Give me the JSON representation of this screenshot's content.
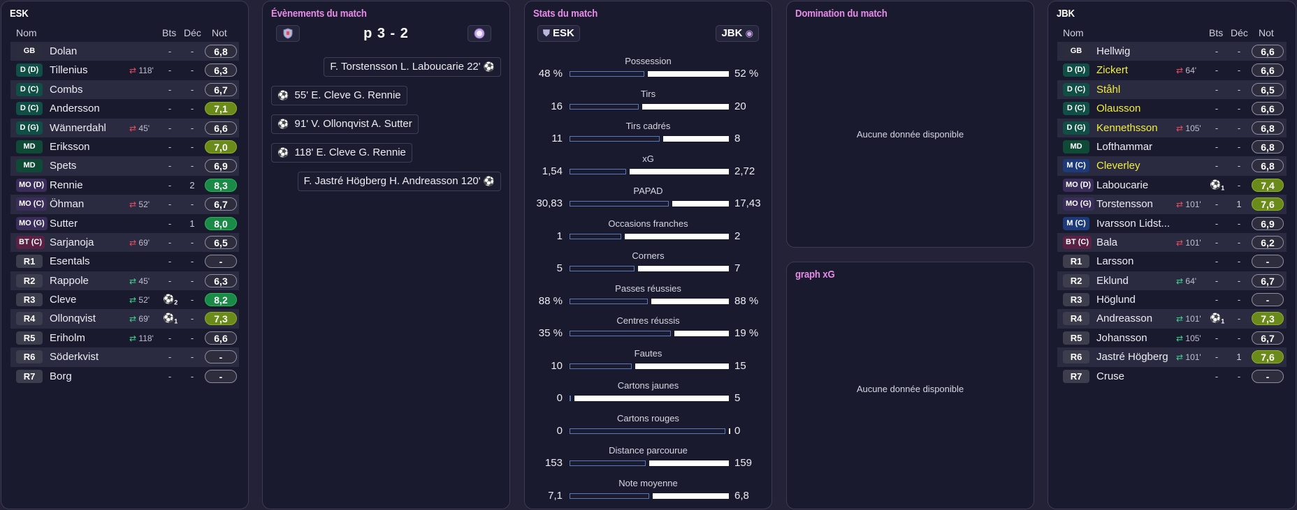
{
  "home_lineup": {
    "title": "ESK",
    "headers": {
      "name": "Nom",
      "goals": "Bts",
      "dec": "Déc",
      "rating": "Not"
    },
    "players": [
      {
        "pos": "GB",
        "pos_class": "pos-gk",
        "name": "Dolan",
        "sub": "",
        "sub_dir": "",
        "goal_icon": "",
        "goals": "-",
        "dec": "-",
        "rating": "6,8",
        "rating_class": ""
      },
      {
        "pos": "D (D)",
        "pos_class": "pos-def",
        "name": "Tillenius",
        "sub": "118'",
        "sub_dir": "out",
        "goal_icon": "",
        "goals": "-",
        "dec": "-",
        "rating": "6,3",
        "rating_class": ""
      },
      {
        "pos": "D (C)",
        "pos_class": "pos-def",
        "name": "Combs",
        "sub": "",
        "sub_dir": "",
        "goal_icon": "",
        "goals": "-",
        "dec": "-",
        "rating": "6,7",
        "rating_class": ""
      },
      {
        "pos": "D (C)",
        "pos_class": "pos-def",
        "name": "Andersson",
        "sub": "",
        "sub_dir": "",
        "goal_icon": "",
        "goals": "-",
        "dec": "-",
        "rating": "7,1",
        "rating_class": "r-yellow"
      },
      {
        "pos": "D (G)",
        "pos_class": "pos-def",
        "name": "Wännerdahl",
        "sub": "45'",
        "sub_dir": "out",
        "goal_icon": "",
        "goals": "-",
        "dec": "-",
        "rating": "6,6",
        "rating_class": ""
      },
      {
        "pos": "MD",
        "pos_class": "pos-mid",
        "name": "Eriksson",
        "sub": "",
        "sub_dir": "",
        "goal_icon": "",
        "goals": "-",
        "dec": "-",
        "rating": "7,0",
        "rating_class": "r-yellow"
      },
      {
        "pos": "MD",
        "pos_class": "pos-mid",
        "name": "Spets",
        "sub": "",
        "sub_dir": "",
        "goal_icon": "",
        "goals": "-",
        "dec": "-",
        "rating": "6,9",
        "rating_class": ""
      },
      {
        "pos": "MO (D)",
        "pos_class": "pos-am",
        "name": "Rennie",
        "sub": "",
        "sub_dir": "",
        "goal_icon": "",
        "goals": "-",
        "dec": "2",
        "rating": "8,3",
        "rating_class": "r-green"
      },
      {
        "pos": "MO (C)",
        "pos_class": "pos-am",
        "name": "Öhman",
        "sub": "52'",
        "sub_dir": "out",
        "goal_icon": "",
        "goals": "-",
        "dec": "-",
        "rating": "6,7",
        "rating_class": ""
      },
      {
        "pos": "MO (G)",
        "pos_class": "pos-am",
        "name": "Sutter",
        "sub": "",
        "sub_dir": "",
        "goal_icon": "",
        "goals": "-",
        "dec": "1",
        "rating": "8,0",
        "rating_class": "r-green"
      },
      {
        "pos": "BT (C)",
        "pos_class": "pos-fw",
        "name": "Sarjanoja",
        "sub": "69'",
        "sub_dir": "out",
        "goal_icon": "",
        "goals": "-",
        "dec": "-",
        "rating": "6,5",
        "rating_class": ""
      },
      {
        "pos": "R1",
        "pos_class": "pos-res",
        "name": "Esentals",
        "sub": "",
        "sub_dir": "",
        "goal_icon": "",
        "goals": "-",
        "dec": "-",
        "rating": "-",
        "rating_class": ""
      },
      {
        "pos": "R2",
        "pos_class": "pos-res",
        "name": "Rappole",
        "sub": "45'",
        "sub_dir": "in",
        "goal_icon": "",
        "goals": "-",
        "dec": "-",
        "rating": "6,3",
        "rating_class": ""
      },
      {
        "pos": "R3",
        "pos_class": "pos-res",
        "name": "Cleve",
        "sub": "52'",
        "sub_dir": "in",
        "goal_icon": "2",
        "goals": "",
        "dec": "-",
        "rating": "8,2",
        "rating_class": "r-green"
      },
      {
        "pos": "R4",
        "pos_class": "pos-res",
        "name": "Ollonqvist",
        "sub": "69'",
        "sub_dir": "in",
        "goal_icon": "1",
        "goals": "",
        "dec": "-",
        "rating": "7,3",
        "rating_class": "r-yellow"
      },
      {
        "pos": "R5",
        "pos_class": "pos-res",
        "name": "Eriholm",
        "sub": "118'",
        "sub_dir": "in",
        "goal_icon": "",
        "goals": "-",
        "dec": "-",
        "rating": "6,6",
        "rating_class": ""
      },
      {
        "pos": "R6",
        "pos_class": "pos-res",
        "name": "Söderkvist",
        "sub": "",
        "sub_dir": "",
        "goal_icon": "",
        "goals": "-",
        "dec": "-",
        "rating": "-",
        "rating_class": ""
      },
      {
        "pos": "R7",
        "pos_class": "pos-res",
        "name": "Borg",
        "sub": "",
        "sub_dir": "",
        "goal_icon": "",
        "goals": "-",
        "dec": "-",
        "rating": "-",
        "rating_class": ""
      }
    ]
  },
  "away_lineup": {
    "title": "JBK",
    "headers": {
      "name": "Nom",
      "goals": "Bts",
      "dec": "Déc",
      "rating": "Not"
    },
    "players": [
      {
        "pos": "GB",
        "pos_class": "pos-gk",
        "name": "Hellwig",
        "highlight": false,
        "sub": "",
        "sub_dir": "",
        "goal_icon": "",
        "goals": "-",
        "dec": "-",
        "rating": "6,6",
        "rating_class": ""
      },
      {
        "pos": "D (D)",
        "pos_class": "pos-def",
        "name": "Zickert",
        "highlight": true,
        "sub": "64'",
        "sub_dir": "out",
        "goal_icon": "",
        "goals": "-",
        "dec": "-",
        "rating": "6,6",
        "rating_class": ""
      },
      {
        "pos": "D (C)",
        "pos_class": "pos-def",
        "name": "Ståhl",
        "highlight": true,
        "sub": "",
        "sub_dir": "",
        "goal_icon": "",
        "goals": "-",
        "dec": "-",
        "rating": "6,5",
        "rating_class": ""
      },
      {
        "pos": "D (C)",
        "pos_class": "pos-def",
        "name": "Olausson",
        "highlight": true,
        "sub": "",
        "sub_dir": "",
        "goal_icon": "",
        "goals": "-",
        "dec": "-",
        "rating": "6,6",
        "rating_class": ""
      },
      {
        "pos": "D (G)",
        "pos_class": "pos-def",
        "name": "Kennethsson",
        "highlight": true,
        "sub": "105'",
        "sub_dir": "out",
        "goal_icon": "",
        "goals": "-",
        "dec": "-",
        "rating": "6,8",
        "rating_class": ""
      },
      {
        "pos": "MD",
        "pos_class": "pos-mid",
        "name": "Lofthammar",
        "highlight": false,
        "sub": "",
        "sub_dir": "",
        "goal_icon": "",
        "goals": "-",
        "dec": "-",
        "rating": "6,8",
        "rating_class": ""
      },
      {
        "pos": "M (C)",
        "pos_class": "pos-mc",
        "name": "Cleverley",
        "highlight": true,
        "sub": "",
        "sub_dir": "",
        "goal_icon": "",
        "goals": "-",
        "dec": "-",
        "rating": "6,8",
        "rating_class": ""
      },
      {
        "pos": "MO (D)",
        "pos_class": "pos-am",
        "name": "Laboucarie",
        "highlight": false,
        "sub": "",
        "sub_dir": "",
        "goal_icon": "1",
        "goals": "",
        "dec": "-",
        "rating": "7,4",
        "rating_class": "r-yellow"
      },
      {
        "pos": "MO (G)",
        "pos_class": "pos-am",
        "name": "Torstensson",
        "highlight": false,
        "sub": "101'",
        "sub_dir": "out",
        "goal_icon": "",
        "goals": "-",
        "dec": "1",
        "rating": "7,6",
        "rating_class": "r-yellow"
      },
      {
        "pos": "M (C)",
        "pos_class": "pos-mc",
        "name": "Ivarsson Lidst...",
        "highlight": false,
        "sub": "",
        "sub_dir": "",
        "goal_icon": "",
        "goals": "-",
        "dec": "-",
        "rating": "6,9",
        "rating_class": ""
      },
      {
        "pos": "BT (C)",
        "pos_class": "pos-fw",
        "name": "Bala",
        "highlight": false,
        "sub": "101'",
        "sub_dir": "out",
        "goal_icon": "",
        "goals": "-",
        "dec": "-",
        "rating": "6,2",
        "rating_class": ""
      },
      {
        "pos": "R1",
        "pos_class": "pos-res",
        "name": "Larsson",
        "highlight": false,
        "sub": "",
        "sub_dir": "",
        "goal_icon": "",
        "goals": "-",
        "dec": "-",
        "rating": "-",
        "rating_class": ""
      },
      {
        "pos": "R2",
        "pos_class": "pos-res",
        "name": "Eklund",
        "highlight": false,
        "sub": "64'",
        "sub_dir": "in",
        "goal_icon": "",
        "goals": "-",
        "dec": "-",
        "rating": "6,7",
        "rating_class": ""
      },
      {
        "pos": "R3",
        "pos_class": "pos-res",
        "name": "Höglund",
        "highlight": false,
        "sub": "",
        "sub_dir": "",
        "goal_icon": "",
        "goals": "-",
        "dec": "-",
        "rating": "-",
        "rating_class": ""
      },
      {
        "pos": "R4",
        "pos_class": "pos-res",
        "name": "Andreasson",
        "highlight": false,
        "sub": "101'",
        "sub_dir": "in",
        "goal_icon": "1",
        "goals": "",
        "dec": "-",
        "rating": "7,3",
        "rating_class": "r-yellow"
      },
      {
        "pos": "R5",
        "pos_class": "pos-res",
        "name": "Johansson",
        "highlight": false,
        "sub": "105'",
        "sub_dir": "in",
        "goal_icon": "",
        "goals": "-",
        "dec": "-",
        "rating": "6,7",
        "rating_class": ""
      },
      {
        "pos": "R6",
        "pos_class": "pos-res",
        "name": "Jastré Högberg",
        "highlight": false,
        "sub": "101'",
        "sub_dir": "in",
        "goal_icon": "",
        "goals": "-",
        "dec": "1",
        "rating": "7,6",
        "rating_class": "r-yellow"
      },
      {
        "pos": "R7",
        "pos_class": "pos-res",
        "name": "Cruse",
        "highlight": false,
        "sub": "",
        "sub_dir": "",
        "goal_icon": "",
        "goals": "-",
        "dec": "-",
        "rating": "-",
        "rating_class": ""
      }
    ]
  },
  "events": {
    "title": "Évènements du match",
    "score": "p 3 - 2",
    "items": [
      {
        "side": "away",
        "text": "F. Torstensson  L. Laboucarie  22'"
      },
      {
        "side": "home",
        "text": "55'  E. Cleve  G. Rennie"
      },
      {
        "side": "home",
        "text": "91'  V. Ollonqvist  A. Sutter"
      },
      {
        "side": "home",
        "text": "118'  E. Cleve  G. Rennie"
      },
      {
        "side": "away",
        "text": "F. Jastré Högberg  H. Andreasson  120'"
      }
    ]
  },
  "stats": {
    "title": "Stats du match",
    "home_team": "ESK",
    "away_team": "JBK",
    "rows": [
      {
        "label": "Possession",
        "home": "48 %",
        "away": "52 %",
        "home_share": 0.48
      },
      {
        "label": "Tirs",
        "home": "16",
        "away": "20",
        "home_share": 0.444
      },
      {
        "label": "Tirs cadrés",
        "home": "11",
        "away": "8",
        "home_share": 0.579
      },
      {
        "label": "xG",
        "home": "1,54",
        "away": "2,72",
        "home_share": 0.362
      },
      {
        "label": "PAPAD",
        "home": "30,83",
        "away": "17,43",
        "home_share": 0.639
      },
      {
        "label": "Occasions franches",
        "home": "1",
        "away": "2",
        "home_share": 0.333
      },
      {
        "label": "Corners",
        "home": "5",
        "away": "7",
        "home_share": 0.417
      },
      {
        "label": "Passes réussies",
        "home": "88 %",
        "away": "88 %",
        "home_share": 0.5
      },
      {
        "label": "Centres réussis",
        "home": "35 %",
        "away": "19 %",
        "home_share": 0.648
      },
      {
        "label": "Fautes",
        "home": "10",
        "away": "15",
        "home_share": 0.4
      },
      {
        "label": "Cartons jaunes",
        "home": "0",
        "away": "5",
        "home_share": 0.0
      },
      {
        "label": "Cartons rouges",
        "home": "0",
        "away": "0",
        "home_share": 1.0
      },
      {
        "label": "Distance parcourue",
        "home": "153",
        "away": "159",
        "home_share": 0.49
      },
      {
        "label": "Note moyenne",
        "home": "7,1",
        "away": "6,8",
        "home_share": 0.51
      }
    ]
  },
  "domination": {
    "title": "Domination du match",
    "empty_text": "Aucune donnée disponible"
  },
  "xg_graph": {
    "title": "graph xG",
    "empty_text": "Aucune donnée disponible"
  },
  "colors": {
    "accent_pink": "#e78ce6",
    "highlight_yellow": "#f2ef3a",
    "rating_green": "#1a8a46",
    "rating_olive": "#6a8b1a"
  }
}
